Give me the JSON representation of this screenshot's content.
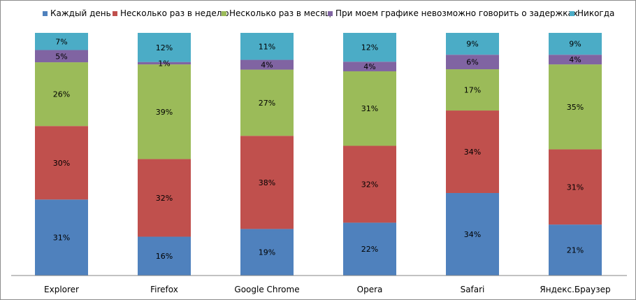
{
  "chart_data": {
    "type": "bar",
    "stacked": true,
    "normalized": true,
    "categories": [
      "Explorer",
      "Firefox",
      "Google Chrome",
      "Opera",
      "Safari",
      "Яндекс.Браузер"
    ],
    "series": [
      {
        "name": "Каждый день",
        "color": "#4F81BD",
        "values": [
          31,
          16,
          19,
          22,
          34,
          21
        ],
        "labels": [
          "31%",
          "16%",
          "19%",
          "22%",
          "34%",
          "21%"
        ]
      },
      {
        "name": "Несколько раз в неделю",
        "color": "#C0504D",
        "values": [
          30,
          32,
          38,
          32,
          34,
          31
        ],
        "labels": [
          "30%",
          "32%",
          "38%",
          "32%",
          "34%",
          "31%"
        ]
      },
      {
        "name": "Несколько раз в месяц",
        "color": "#9BBB59",
        "values": [
          26,
          39,
          27,
          31,
          17,
          35
        ],
        "labels": [
          "26%",
          "39%",
          "27%",
          "31%",
          "17%",
          "35%"
        ]
      },
      {
        "name": "При моем графике невозможно говорить о задержках",
        "color": "#8064A2",
        "values": [
          5,
          1,
          4,
          4,
          6,
          4
        ],
        "labels": [
          "5%",
          "1%",
          "4%",
          "4%",
          "6%",
          "4%"
        ]
      },
      {
        "name": "Никогда",
        "color": "#4BACC6",
        "values": [
          7,
          12,
          11,
          12,
          9,
          9
        ],
        "labels": [
          "7%",
          "12%",
          "11%",
          "12%",
          "9%",
          "9%"
        ]
      }
    ],
    "legend_position": "top",
    "grid": false,
    "axis_color": "#868686"
  }
}
